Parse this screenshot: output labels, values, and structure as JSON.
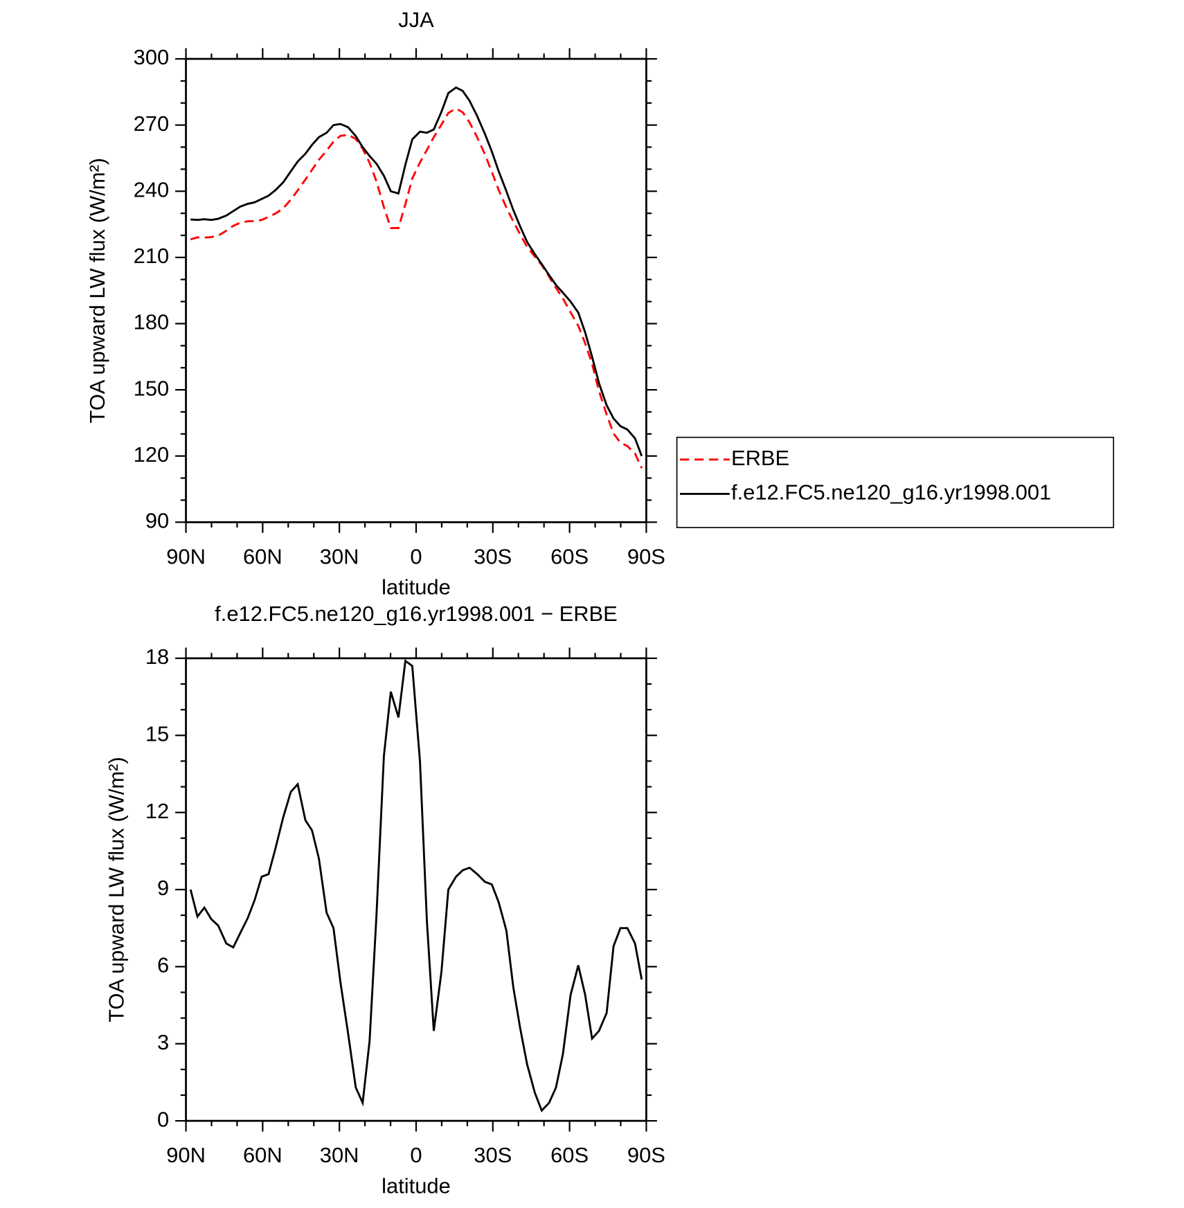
{
  "chart_data": [
    {
      "type": "line",
      "title": "JJA",
      "xlabel": "latitude",
      "ylabel": "TOA upward LW flux (W/m²)",
      "x": [
        88.2,
        85.5,
        82.8,
        80.1,
        77.4,
        74.2,
        71.5,
        68.8,
        65.8,
        63.1,
        60.4,
        57.7,
        55,
        52,
        49,
        46.3,
        43.3,
        40.7,
        38,
        35,
        32.3,
        29.6,
        26.6,
        23.6,
        20.9,
        18.2,
        15.5,
        12.6,
        9.9,
        6.9,
        4.2,
        1.5,
        -1.5,
        -4.2,
        -6.9,
        -9.9,
        -12.6,
        -15.6,
        -18.2,
        -20.9,
        -23.9,
        -26.9,
        -29.6,
        -32.3,
        -35.3,
        -38,
        -40.7,
        -43.4,
        -46.4,
        -49.1,
        -52,
        -54.7,
        -57.4,
        -60.4,
        -63.4,
        -66.1,
        -68.8,
        -71.5,
        -74.5,
        -77.2,
        -79.9,
        -82.6,
        -85.6,
        -88.2
      ],
      "series": [
        {
          "name": "ERBE",
          "color": "#ff0000",
          "dash": true,
          "values": [
            218.2,
            219.1,
            219,
            219.2,
            219.9,
            222.1,
            224.3,
            225.7,
            226.4,
            226.4,
            227,
            228.4,
            229.9,
            232.2,
            236.2,
            240.4,
            245.3,
            249.7,
            254.3,
            258.4,
            262.5,
            265.1,
            265.6,
            263.7,
            259.3,
            252.9,
            244.5,
            232.8,
            223.3,
            223.3,
            234.1,
            245.8,
            253,
            258.7,
            264.5,
            270.2,
            275.5,
            277.5,
            275.8,
            271.2,
            264.4,
            256.7,
            248.8,
            240.5,
            232.6,
            226.3,
            220.4,
            214.8,
            210.4,
            206.6,
            201.3,
            196.2,
            191.4,
            185.1,
            179,
            171.1,
            161.8,
            149.5,
            138.8,
            130.2,
            126,
            124.5,
            121.1,
            114.5
          ]
        },
        {
          "name": "f.e12.FC5.ne120_g16.yr1998.001",
          "color": "#000000",
          "dash": false,
          "values": [
            227.2,
            227,
            227.3,
            227,
            227.5,
            229,
            231,
            233,
            234.3,
            235,
            236.5,
            238,
            240.5,
            244,
            249,
            253.5,
            257,
            261,
            264.5,
            266.5,
            270,
            270.5,
            269,
            265,
            260,
            256,
            252.5,
            247,
            240,
            239,
            252,
            263.5,
            267,
            266.5,
            268,
            276,
            284.5,
            287,
            285.5,
            281,
            274,
            266,
            258,
            249,
            240,
            231.5,
            224,
            217,
            211.5,
            207,
            202,
            197.5,
            194,
            190,
            185,
            176,
            165,
            153,
            143,
            137,
            133.5,
            132,
            128,
            120
          ]
        }
      ],
      "xlim": [
        90,
        -90
      ],
      "xticks": [
        {
          "value": 90,
          "label": "90N"
        },
        {
          "value": 60,
          "label": "60N"
        },
        {
          "value": 30,
          "label": "30N"
        },
        0,
        {
          "value": -30,
          "label": "30S"
        },
        {
          "value": -60,
          "label": "60S"
        },
        {
          "value": -90,
          "label": "90S"
        }
      ],
      "ylim": [
        90,
        300
      ],
      "yticks": [
        90,
        120,
        150,
        180,
        210,
        240,
        270,
        300
      ],
      "legend": "right"
    },
    {
      "type": "line",
      "title": "f.e12.FC5.ne120_g16.yr1998.001 − ERBE",
      "xlabel": "latitude",
      "ylabel": "TOA upward LW flux (W/m²)",
      "x": [
        88.2,
        85.5,
        82.8,
        80.1,
        77.4,
        74.2,
        71.5,
        68.8,
        65.8,
        63.1,
        60.4,
        57.7,
        55,
        52,
        49,
        46.3,
        43.3,
        40.7,
        38,
        35,
        32.3,
        29.6,
        26.6,
        23.6,
        20.9,
        18.2,
        15.5,
        12.6,
        9.9,
        6.9,
        4.2,
        1.5,
        -1.5,
        -4.2,
        -6.9,
        -9.9,
        -12.6,
        -15.6,
        -18.2,
        -20.9,
        -23.9,
        -26.9,
        -29.6,
        -32.3,
        -35.3,
        -38,
        -40.7,
        -43.4,
        -46.4,
        -49.1,
        -52,
        -54.7,
        -57.4,
        -60.4,
        -63.4,
        -66.1,
        -68.8,
        -71.5,
        -74.5,
        -77.2,
        -79.9,
        -82.6,
        -85.6,
        -88.2
      ],
      "series": [
        {
          "color": "#000000",
          "dash": false,
          "values": [
            9,
            7.95,
            8.3,
            7.85,
            7.6,
            6.9,
            6.75,
            7.3,
            7.9,
            8.6,
            9.5,
            9.6,
            10.6,
            11.8,
            12.8,
            13.1,
            11.7,
            11.3,
            10.2,
            8.1,
            7.5,
            5.4,
            3.4,
            1.3,
            0.7,
            3.1,
            8,
            14.2,
            16.7,
            15.7,
            17.9,
            17.7,
            14,
            7.8,
            3.5,
            5.8,
            9,
            9.5,
            9.75,
            9.85,
            9.6,
            9.3,
            9.2,
            8.5,
            7.4,
            5.2,
            3.6,
            2.2,
            1.1,
            0.4,
            0.7,
            1.3,
            2.6,
            4.9,
            6.05,
            4.9,
            3.2,
            3.5,
            4.2,
            6.8,
            7.5,
            7.5,
            6.9,
            5.5
          ]
        }
      ],
      "xlim": [
        90,
        -90
      ],
      "xticks": [
        {
          "value": 90,
          "label": "90N"
        },
        {
          "value": 60,
          "label": "60N"
        },
        {
          "value": 30,
          "label": "30N"
        },
        0,
        {
          "value": -30,
          "label": "30S"
        },
        {
          "value": -60,
          "label": "60S"
        },
        {
          "value": -90,
          "label": "90S"
        }
      ],
      "ylim": [
        0,
        18
      ],
      "yticks": [
        0,
        3,
        6,
        9,
        12,
        15,
        18
      ]
    }
  ]
}
